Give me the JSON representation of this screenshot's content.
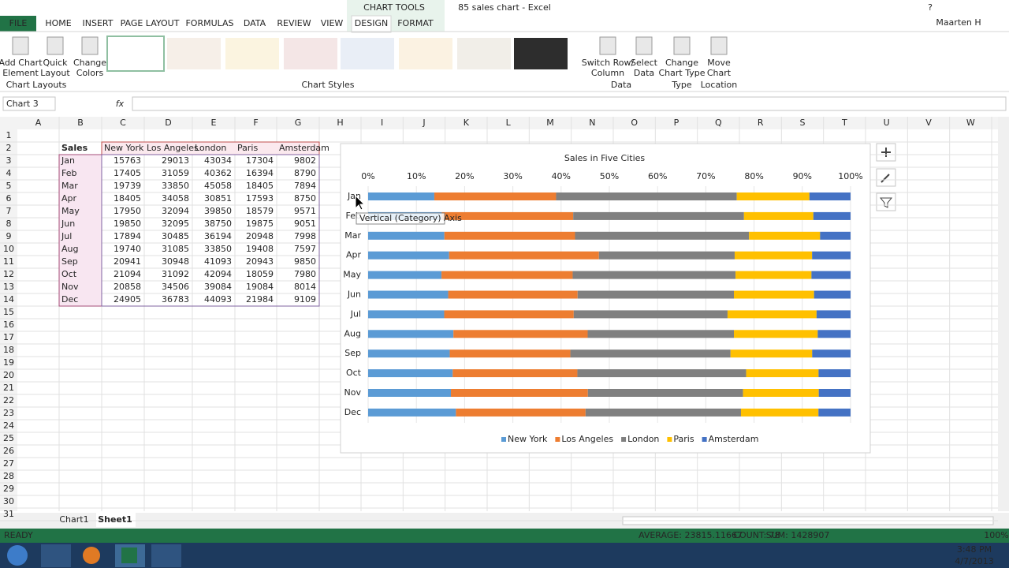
{
  "window": {
    "title": "85 sales chart - Excel",
    "context_tab": "CHART TOOLS",
    "help": "?",
    "user": "Maarten H"
  },
  "tabs": [
    "FILE",
    "HOME",
    "INSERT",
    "PAGE LAYOUT",
    "FORMULAS",
    "DATA",
    "REVIEW",
    "VIEW",
    "DESIGN",
    "FORMAT"
  ],
  "ribbon": {
    "buttons": [
      [
        "Add Chart",
        "Element"
      ],
      [
        "Quick",
        "Layout"
      ],
      [
        "Change",
        "Colors"
      ],
      [
        "Switch Row/",
        "Column"
      ],
      [
        "Select",
        "Data"
      ],
      [
        "Change",
        "Chart Type"
      ],
      [
        "Move",
        "Chart"
      ]
    ],
    "groups": [
      "Chart Layouts",
      "Chart Styles",
      "Data",
      "Type",
      "Location"
    ]
  },
  "name_box": "Chart 3",
  "fx": "fx",
  "columns": [
    "A",
    "B",
    "C",
    "D",
    "E",
    "F",
    "G",
    "H",
    "I",
    "J",
    "K",
    "L",
    "M",
    "N",
    "O",
    "P",
    "Q",
    "R",
    "S",
    "T",
    "U",
    "V",
    "W"
  ],
  "rows": [
    1,
    2,
    3,
    4,
    5,
    6,
    7,
    8,
    9,
    10,
    11,
    12,
    13,
    14,
    15,
    16,
    17,
    18,
    19,
    20,
    21,
    22,
    23,
    24,
    25,
    26,
    27,
    28,
    29,
    30,
    31
  ],
  "sheet": {
    "corner": "Sales"
  },
  "tooltip": "Vertical (Category) Axis",
  "sheet_tabs": [
    "Chart1",
    "Sheet1"
  ],
  "status": {
    "mode": "READY",
    "average": "AVERAGE: 23815.11667",
    "count": "COUNT: 78",
    "sum": "SUM: 1428907",
    "zoom": "100%"
  },
  "clock": {
    "time": "3:48 PM",
    "date": "4/7/2013"
  },
  "chart_data": {
    "type": "bar",
    "orientation": "horizontal",
    "stacked": "percent",
    "title": "Sales in Five Cities",
    "categories": [
      "Jan",
      "Feb",
      "Mar",
      "Apr",
      "May",
      "Jun",
      "Jul",
      "Aug",
      "Sep",
      "Oct",
      "Nov",
      "Dec"
    ],
    "series": [
      {
        "name": "New York",
        "color": "#5b9bd5",
        "values": [
          15763,
          17405,
          19739,
          18405,
          17950,
          19850,
          17894,
          19740,
          20941,
          21094,
          20858,
          24905
        ]
      },
      {
        "name": "Los Angeles",
        "color": "#ed7d31",
        "values": [
          29013,
          31059,
          33850,
          34058,
          32094,
          32095,
          30485,
          31085,
          30948,
          31092,
          34506,
          36783
        ]
      },
      {
        "name": "London",
        "color": "#808080",
        "values": [
          43034,
          40362,
          45058,
          30851,
          39850,
          38750,
          36194,
          33850,
          41093,
          42094,
          39084,
          44093
        ]
      },
      {
        "name": "Paris",
        "color": "#ffc000",
        "values": [
          17304,
          16394,
          18405,
          17593,
          18579,
          19875,
          20948,
          19408,
          20943,
          18059,
          19084,
          21984
        ]
      },
      {
        "name": "Amsterdam",
        "color": "#4472c4",
        "values": [
          9802,
          8790,
          7894,
          8750,
          9571,
          9051,
          7998,
          7597,
          9850,
          7980,
          8014,
          9109
        ]
      }
    ],
    "xlim": [
      0,
      100
    ],
    "xticks": [
      {
        "value": 0,
        "label": "0%"
      },
      {
        "value": 10,
        "label": "10%"
      },
      {
        "value": 20,
        "label": "20%"
      },
      {
        "value": 30,
        "label": "30%"
      },
      {
        "value": 40,
        "label": "40%"
      },
      {
        "value": 50,
        "label": "50%"
      },
      {
        "value": 60,
        "label": "60%"
      },
      {
        "value": 70,
        "label": "70%"
      },
      {
        "value": 80,
        "label": "80%"
      },
      {
        "value": 90,
        "label": "90%"
      },
      {
        "value": 100,
        "label": "100%"
      }
    ],
    "grid": true,
    "legend": "bottom"
  }
}
